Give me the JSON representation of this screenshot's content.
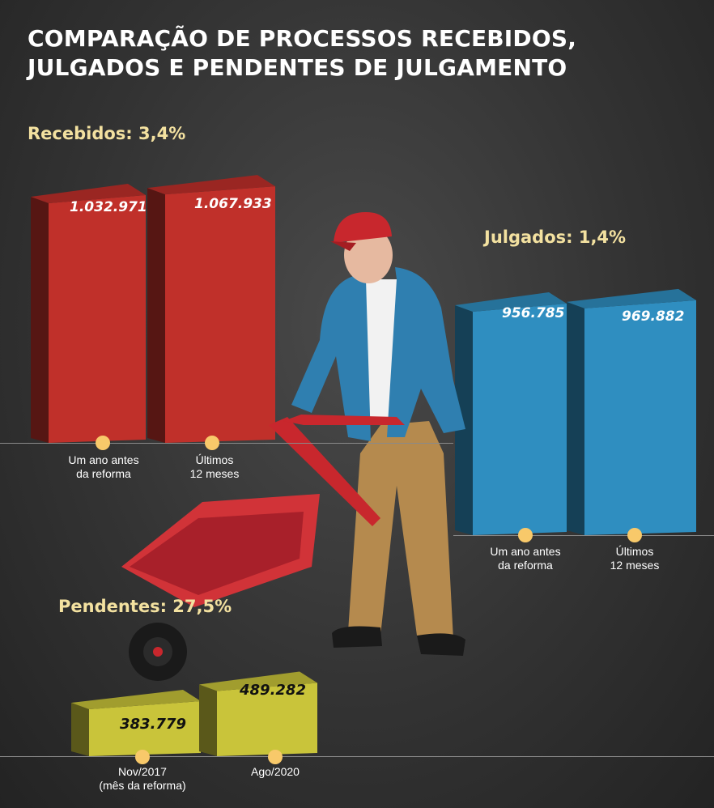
{
  "title_lines": [
    "COMPARAÇÃO DE PROCESSOS RECEBIDOS,",
    "JULGADOS E PENDENTES DE JULGAMENTO"
  ],
  "sections": {
    "recebidos": {
      "label": "Recebidos: 3,4%",
      "value_labels": [
        "1.032.971",
        "1.067.933"
      ],
      "categories": [
        "Um ano antes\nda reforma",
        "Últimos\n12 meses"
      ]
    },
    "julgados": {
      "label": "Julgados: 1,4%",
      "value_labels": [
        "956.785",
        "969.882"
      ],
      "categories": [
        "Um ano antes\nda reforma",
        "Últimos\n12 meses"
      ]
    },
    "pendentes": {
      "label": "Pendentes: 27,5%",
      "value_labels": [
        "383.779",
        "489.282"
      ],
      "categories": [
        "Nov/2017\n(mês da reforma)",
        "Ago/2020"
      ]
    }
  },
  "colors": {
    "recebidos": "#c0302a",
    "julgados": "#2f8ec0",
    "pendentes": "#c9c43a",
    "accent_text": "#f3e1a0",
    "dot": "#f8c96a"
  },
  "chart_data": [
    {
      "type": "bar",
      "title": "Recebidos: 3,4%",
      "categories": [
        "Um ano antes da reforma",
        "Últimos 12 meses"
      ],
      "values": [
        1032971,
        1067933
      ]
    },
    {
      "type": "bar",
      "title": "Julgados: 1,4%",
      "categories": [
        "Um ano antes da reforma",
        "Últimos 12 meses"
      ],
      "values": [
        956785,
        969882
      ]
    },
    {
      "type": "bar",
      "title": "Pendentes: 27,5%",
      "categories": [
        "Nov/2017 (mês da reforma)",
        "Ago/2020"
      ],
      "values": [
        383779,
        489282
      ]
    }
  ]
}
